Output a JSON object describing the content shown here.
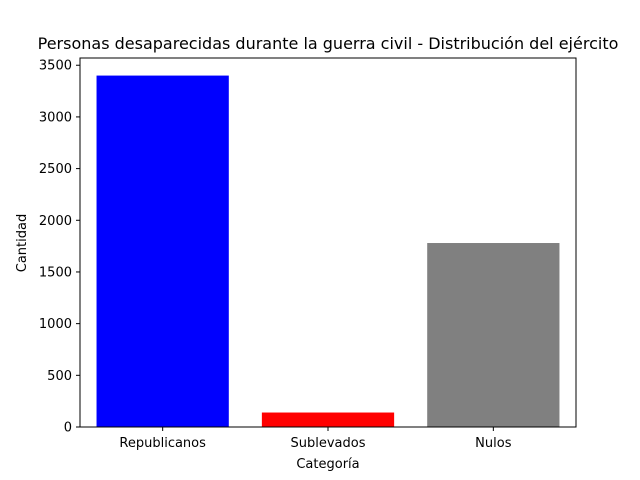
{
  "chart_data": {
    "type": "bar",
    "title": "Personas desaparecidas durante la guerra civil - Distribución del ejército",
    "xlabel": "Categoría",
    "ylabel": "Cantidad",
    "categories": [
      "Republicanos",
      "Sublevados",
      "Nulos"
    ],
    "values": [
      3400,
      140,
      1780
    ],
    "colors": [
      "#0000ff",
      "#ff0000",
      "#808080"
    ],
    "ylim": [
      0,
      3570
    ],
    "yticks": [
      0,
      500,
      1000,
      1500,
      2000,
      2500,
      3000,
      3500
    ],
    "grid": false,
    "legend": "none"
  }
}
